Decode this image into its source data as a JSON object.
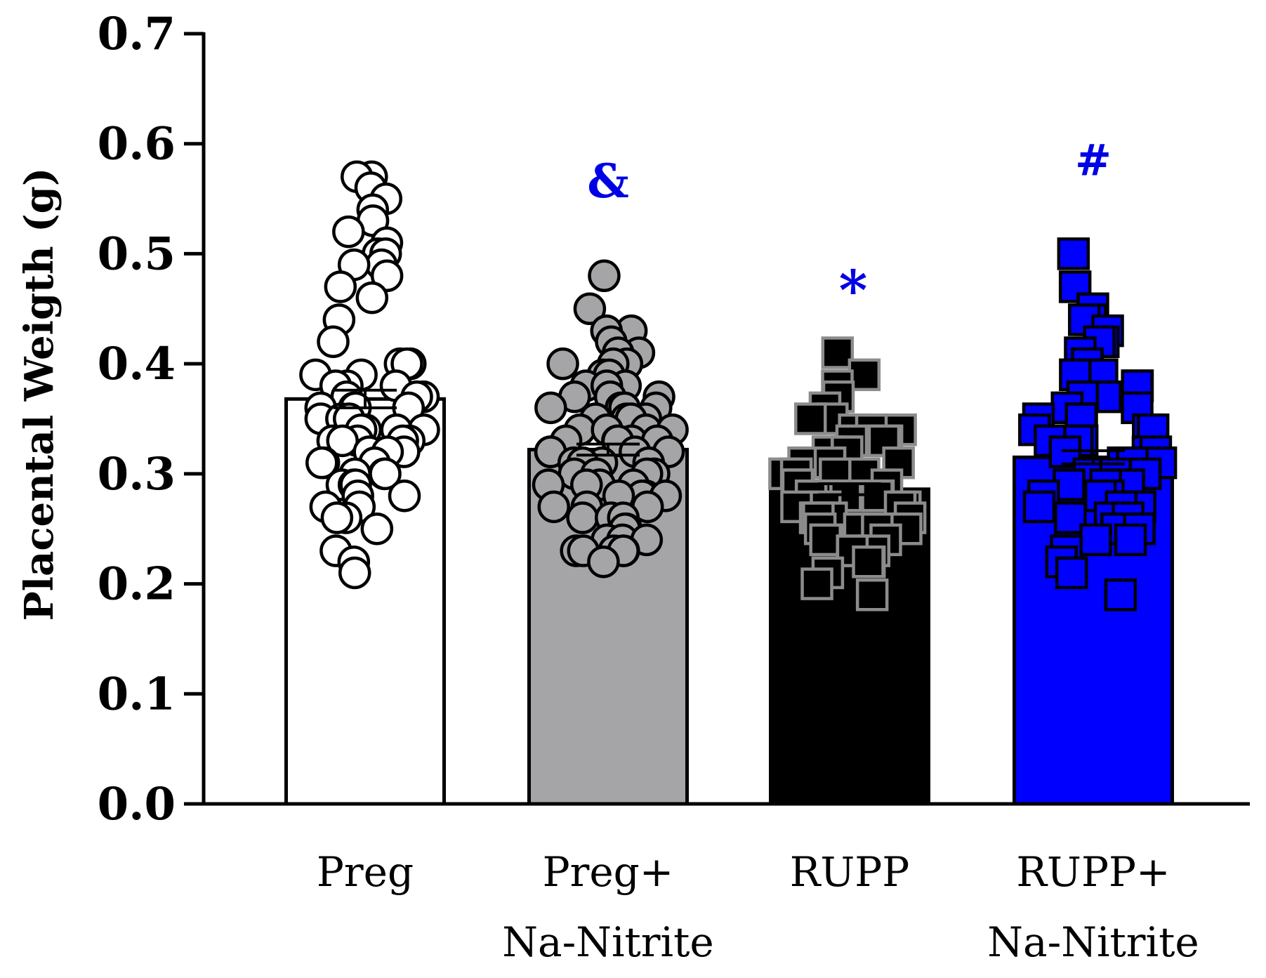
{
  "chart_data": {
    "type": "bar",
    "title": "",
    "xlabel": "",
    "ylabel": "Placental Weigth (g)",
    "ylim": [
      0,
      0.7
    ],
    "yticks": [
      "0.0",
      "0.1",
      "0.2",
      "0.3",
      "0.4",
      "0.5",
      "0.6",
      "0.7"
    ],
    "categories": [
      {
        "line1": "Preg",
        "line2": ""
      },
      {
        "line1": "Preg+",
        "line2": "Na-Nitrite"
      },
      {
        "line1": "RUPP",
        "line2": ""
      },
      {
        "line1": "RUPP+",
        "line2": "Na-Nitrite"
      }
    ],
    "series": [
      {
        "name": "Preg",
        "value": 0.368,
        "sem": 0.008,
        "fill": "#ffffff",
        "marker": "circle",
        "marker_fill": "#ffffff",
        "marker_edge": "#000000",
        "annotation": "",
        "points": [
          0.57,
          0.57,
          0.56,
          0.55,
          0.54,
          0.53,
          0.52,
          0.51,
          0.5,
          0.5,
          0.49,
          0.49,
          0.48,
          0.47,
          0.46,
          0.44,
          0.42,
          0.4,
          0.4,
          0.4,
          0.39,
          0.39,
          0.38,
          0.38,
          0.38,
          0.37,
          0.37,
          0.37,
          0.36,
          0.36,
          0.36,
          0.36,
          0.35,
          0.35,
          0.35,
          0.34,
          0.34,
          0.34,
          0.34,
          0.33,
          0.33,
          0.33,
          0.33,
          0.33,
          0.32,
          0.32,
          0.32,
          0.31,
          0.31,
          0.31,
          0.3,
          0.3,
          0.3,
          0.29,
          0.29,
          0.29,
          0.28,
          0.28,
          0.27,
          0.27,
          0.26,
          0.26,
          0.25,
          0.23,
          0.22,
          0.21
        ]
      },
      {
        "name": "Preg+ Na-Nitrite",
        "value": 0.322,
        "sem": 0.005,
        "fill": "#a5a5a8",
        "marker": "circle",
        "marker_fill": "#a5a5a8",
        "marker_edge": "#000000",
        "annotation": "&",
        "points": [
          0.48,
          0.45,
          0.43,
          0.43,
          0.42,
          0.41,
          0.41,
          0.4,
          0.4,
          0.4,
          0.39,
          0.39,
          0.38,
          0.38,
          0.38,
          0.37,
          0.37,
          0.37,
          0.36,
          0.36,
          0.36,
          0.36,
          0.35,
          0.35,
          0.35,
          0.35,
          0.34,
          0.34,
          0.34,
          0.34,
          0.33,
          0.33,
          0.33,
          0.33,
          0.33,
          0.32,
          0.32,
          0.32,
          0.32,
          0.31,
          0.31,
          0.31,
          0.31,
          0.3,
          0.3,
          0.3,
          0.3,
          0.29,
          0.29,
          0.29,
          0.29,
          0.28,
          0.28,
          0.28,
          0.28,
          0.27,
          0.27,
          0.27,
          0.26,
          0.26,
          0.26,
          0.25,
          0.25,
          0.24,
          0.24,
          0.24,
          0.23,
          0.23,
          0.23,
          0.23,
          0.23,
          0.22
        ]
      },
      {
        "name": "RUPP",
        "value": 0.286,
        "sem": 0.005,
        "fill": "#000000",
        "marker": "square",
        "marker_fill": "#000000",
        "marker_edge": "#8c8c8c",
        "annotation": "*",
        "points": [
          0.41,
          0.39,
          0.38,
          0.37,
          0.36,
          0.35,
          0.35,
          0.34,
          0.34,
          0.34,
          0.33,
          0.33,
          0.33,
          0.32,
          0.32,
          0.32,
          0.31,
          0.31,
          0.31,
          0.3,
          0.3,
          0.3,
          0.3,
          0.29,
          0.29,
          0.29,
          0.29,
          0.28,
          0.28,
          0.28,
          0.28,
          0.28,
          0.27,
          0.27,
          0.27,
          0.27,
          0.26,
          0.26,
          0.26,
          0.26,
          0.25,
          0.25,
          0.25,
          0.25,
          0.24,
          0.24,
          0.24,
          0.23,
          0.23,
          0.23,
          0.22,
          0.22,
          0.21,
          0.2,
          0.19
        ]
      },
      {
        "name": "RUPP+ Na-Nitrite",
        "value": 0.315,
        "sem": 0.006,
        "fill": "#0000ff",
        "marker": "square",
        "marker_fill": "#0000ff",
        "marker_edge": "#000000",
        "annotation": "#",
        "points": [
          0.5,
          0.47,
          0.45,
          0.44,
          0.44,
          0.43,
          0.42,
          0.42,
          0.41,
          0.4,
          0.4,
          0.39,
          0.39,
          0.38,
          0.38,
          0.37,
          0.37,
          0.36,
          0.36,
          0.35,
          0.35,
          0.35,
          0.34,
          0.34,
          0.34,
          0.33,
          0.33,
          0.33,
          0.32,
          0.32,
          0.32,
          0.31,
          0.31,
          0.31,
          0.3,
          0.3,
          0.3,
          0.29,
          0.29,
          0.29,
          0.28,
          0.28,
          0.28,
          0.27,
          0.27,
          0.27,
          0.26,
          0.26,
          0.26,
          0.25,
          0.25,
          0.24,
          0.24,
          0.23,
          0.22,
          0.21,
          0.19
        ]
      }
    ]
  }
}
